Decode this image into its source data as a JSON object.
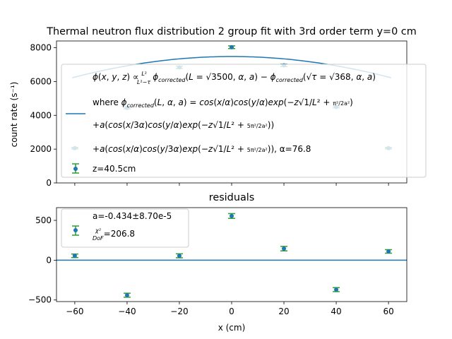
{
  "colors": {
    "fit_line": "#1f77b4",
    "marker": "#1f77b4",
    "errorbar": "#2ca02c",
    "zero_line": "#1f77b4"
  },
  "chart_data": [
    {
      "type": "scatter",
      "title": "Thermal neutron flux distribution 2 group fit with 3rd order term y=0 cm",
      "xlabel": "",
      "ylabel": "count rate (s⁻¹)",
      "xlim": [
        -67,
        67
      ],
      "ylim": [
        0,
        8400
      ],
      "yticks": [
        0,
        2000,
        4000,
        6000,
        8000
      ],
      "ytick_labels": [
        "0",
        "2000",
        "4000",
        "6000",
        "8000"
      ],
      "xticks": [
        -60,
        -40,
        -20,
        0,
        20,
        40,
        60
      ],
      "show_xtick_labels": false,
      "grid": false,
      "legend_position": "right",
      "series": [
        {
          "kind": "data",
          "name": "z=40.5cm",
          "x": [
            -60,
            -40,
            -20,
            0,
            20,
            40,
            60
          ],
          "y": [
            2060,
            4440,
            6840,
            8030,
            6960,
            4500,
            2060
          ],
          "yerr": [
            40,
            55,
            70,
            80,
            70,
            55,
            40
          ]
        },
        {
          "kind": "fit",
          "x_range": [
            -61,
            61
          ],
          "peak": 7480,
          "half_width": 103.7
        }
      ],
      "legend": {
        "fit_lines": [
          "ϕ(x, y, z) ∝ L²/(L²−τ) ϕcorrected(L = √3500, α, a) − ϕcorrected(√τ = √368, α, a)",
          "where ϕcorrected(L, α, a) = cos(x/α)cos(y/α)exp(−z√(1/L² + π²/2a²))",
          "+a(cos(x/3α)cos(y/α)exp(−z√(1/L² + 5π²/2a²)))",
          "+a(cos(x/α)cos(y/3α)exp(−z√(1/L² + 5π²/2a²))), α=76.8"
        ],
        "data_label": "z=40.5cm"
      }
    },
    {
      "type": "scatter",
      "title": "residuals",
      "xlabel": "x (cm)",
      "ylabel": "",
      "xlim": [
        -67,
        67
      ],
      "ylim": [
        -520,
        660
      ],
      "yticks": [
        -500,
        0,
        500
      ],
      "ytick_labels": [
        "−500",
        "0",
        "500"
      ],
      "xticks": [
        -60,
        -40,
        -20,
        0,
        20,
        40,
        60
      ],
      "xtick_labels": [
        "−60",
        "−40",
        "−20",
        "0",
        "20",
        "40",
        "60"
      ],
      "grid": false,
      "legend_position": "upper left",
      "zero_line": 0,
      "series": [
        {
          "kind": "residuals",
          "x": [
            -60,
            -40,
            -20,
            0,
            20,
            40,
            60
          ],
          "y": [
            55,
            -440,
            55,
            555,
            145,
            -370,
            110
          ],
          "yerr": [
            22,
            25,
            25,
            30,
            28,
            25,
            22
          ]
        }
      ],
      "legend": {
        "a_text": "a=-0.434±8.70e-5",
        "chi_text": "χ²/DoF=206.8"
      }
    }
  ]
}
